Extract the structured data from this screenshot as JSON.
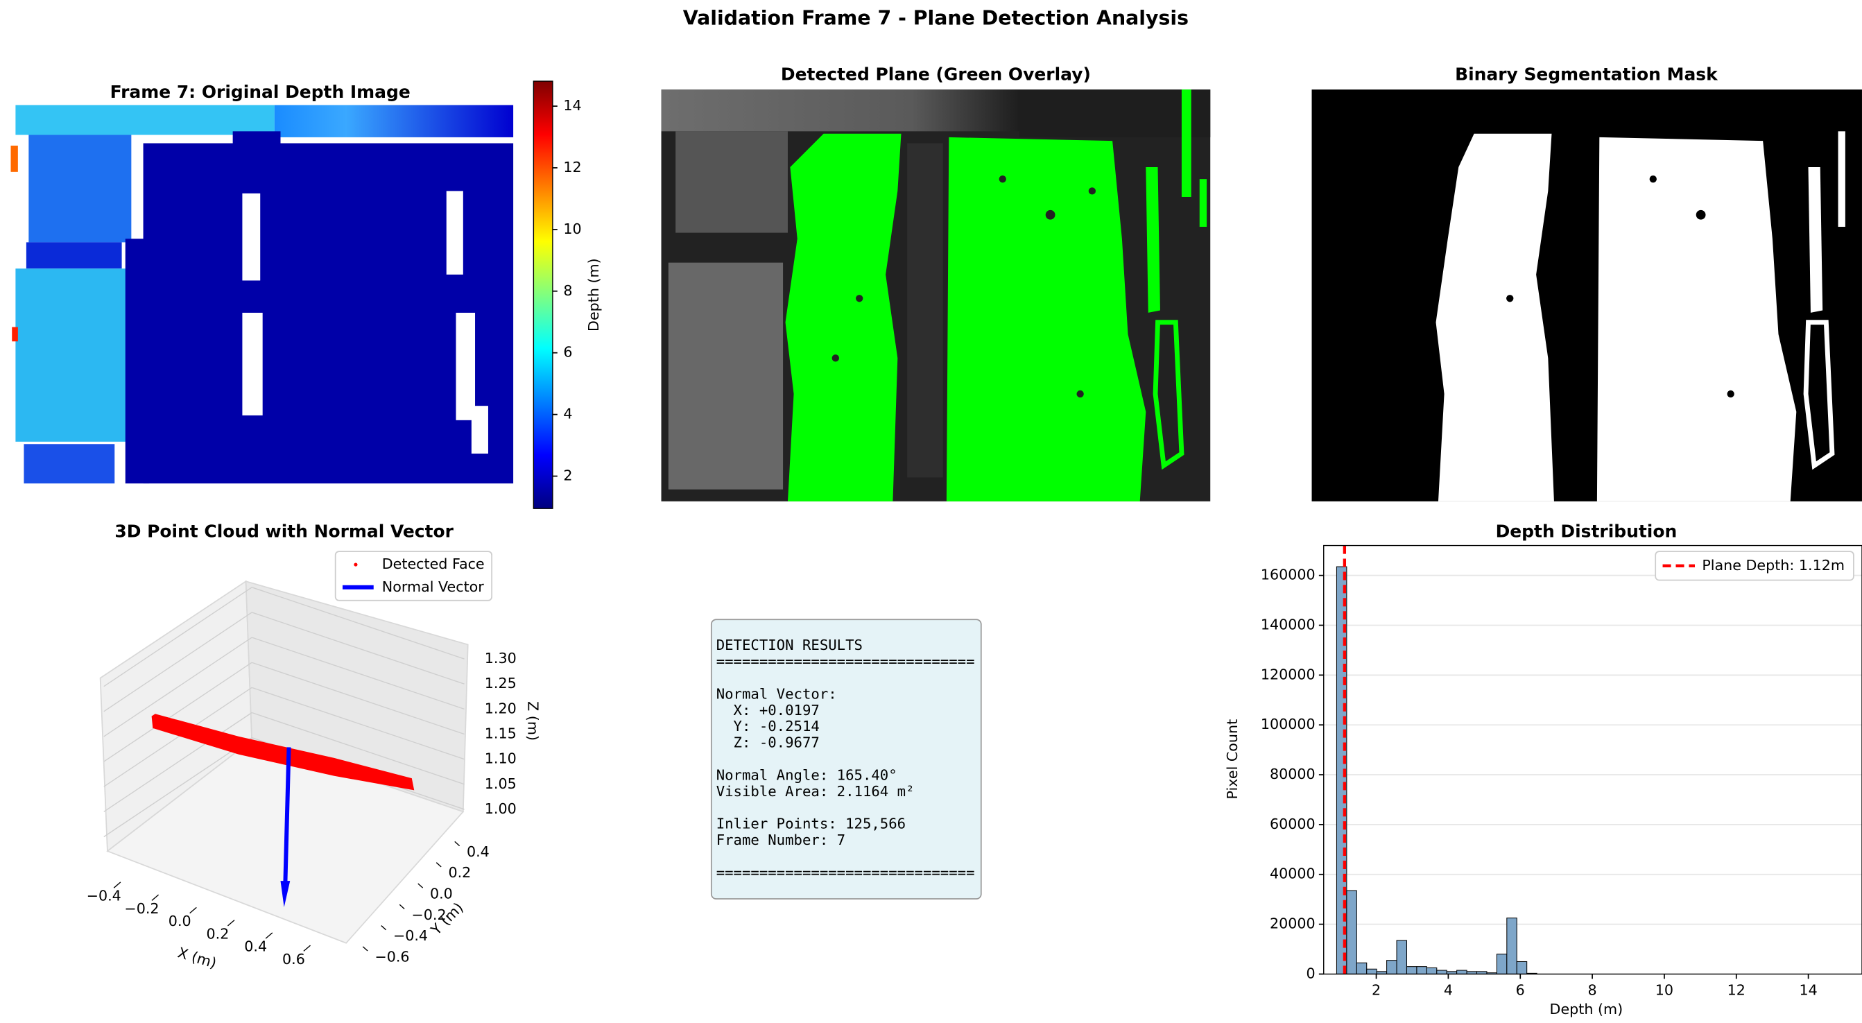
{
  "title": "Validation Frame 7 - Plane Detection Analysis",
  "chart_data": [
    {
      "type": "image",
      "title": "Frame 7: Original Depth Image",
      "colorbar": {
        "label": "Depth (m)",
        "lim": [
          0.95,
          14.81
        ],
        "ticks": [
          2,
          4,
          6,
          8,
          10,
          12,
          14
        ]
      }
    },
    {
      "type": "image",
      "title": "Detected Plane (Green Overlay)"
    },
    {
      "type": "image",
      "title": "Binary Segmentation Mask"
    },
    {
      "type": "scatter3d",
      "title": "3D Point Cloud with Normal Vector",
      "xlabel": "X (m)",
      "ylabel": "Y (m)",
      "zlabel": "Z (m)",
      "xlim": [
        -0.4,
        0.6
      ],
      "ylim": [
        -0.6,
        0.4
      ],
      "zlim": [
        1.0,
        1.3
      ],
      "xticks": [
        {
          "value": -0.4,
          "label": "−0.4"
        },
        {
          "value": -0.2,
          "label": "−0.2"
        },
        {
          "value": 0.0,
          "label": "0.0"
        },
        {
          "value": 0.2,
          "label": "0.2"
        },
        {
          "value": 0.4,
          "label": "0.4"
        },
        {
          "value": 0.6,
          "label": "0.6"
        }
      ],
      "yticks": [
        {
          "value": -0.6,
          "label": "−0.6"
        },
        {
          "value": -0.4,
          "label": "−0.4"
        },
        {
          "value": -0.2,
          "label": "−0.2"
        },
        {
          "value": 0.0,
          "label": "0.0"
        },
        {
          "value": 0.2,
          "label": "0.2"
        },
        {
          "value": 0.4,
          "label": "0.4"
        }
      ],
      "zticks": [
        {
          "value": 1.0,
          "label": "1.00"
        },
        {
          "value": 1.05,
          "label": "1.05"
        },
        {
          "value": 1.1,
          "label": "1.10"
        },
        {
          "value": 1.15,
          "label": "1.15"
        },
        {
          "value": 1.2,
          "label": "1.20"
        },
        {
          "value": 1.25,
          "label": "1.25"
        },
        {
          "value": 1.3,
          "label": "1.30"
        }
      ],
      "series": [
        {
          "name": "Detected Face",
          "color": "#ff0000"
        },
        {
          "name": "Normal Vector",
          "color": "#0000ff"
        }
      ]
    },
    {
      "type": "text",
      "blocks": [
        [
          "DETECTION RESULTS",
          "=============================="
        ],
        [
          "Normal Vector:",
          "  X: +0.0197",
          "  Y: -0.2514",
          "  Z: -0.9677"
        ],
        [
          "Normal Angle: 165.40°",
          "Visible Area: 2.1164 m²"
        ],
        [
          "Inlier Points: 125,566",
          "Frame Number: 7"
        ],
        [
          "=============================="
        ]
      ]
    },
    {
      "type": "histogram",
      "title": "Depth Distribution",
      "xlabel": "Depth (m)",
      "ylabel": "Pixel Count",
      "bins": [
        0.9,
        1.178,
        1.456,
        1.734,
        2.012,
        2.29,
        2.568,
        2.846,
        3.124,
        3.402,
        3.68,
        3.958,
        4.236,
        4.514,
        4.792,
        5.07,
        5.348,
        5.626,
        5.904,
        6.182,
        6.46,
        6.738,
        7.016,
        7.294,
        7.572,
        7.85,
        8.128,
        8.406,
        8.684,
        8.962,
        9.24,
        9.518,
        9.796,
        10.074,
        10.352,
        10.63,
        10.908,
        11.186,
        11.464,
        11.742,
        12.02,
        12.298,
        12.576,
        12.854,
        13.132,
        13.41,
        13.688,
        13.966,
        14.244,
        14.522,
        14.8
      ],
      "values": [
        163500,
        33500,
        4500,
        2000,
        1000,
        5500,
        13500,
        3000,
        3000,
        2500,
        1500,
        1000,
        1500,
        1000,
        1000,
        500,
        8000,
        22500,
        5000,
        300,
        0,
        0,
        0,
        0,
        0,
        0,
        0,
        0,
        0,
        0,
        0,
        0,
        0,
        0,
        0,
        0,
        0,
        0,
        0,
        0,
        0,
        0,
        0,
        0,
        0,
        0,
        0,
        0,
        0,
        0
      ],
      "color": "#7ea6c9",
      "xlim": [
        0.54,
        15.49
      ],
      "ylim": [
        0,
        172000
      ],
      "xticks": [
        2,
        4,
        6,
        8,
        10,
        12,
        14
      ],
      "yticks": [
        0,
        20000,
        40000,
        60000,
        80000,
        100000,
        120000,
        140000,
        160000
      ],
      "grid": "y",
      "reference_line": {
        "value": 1.12,
        "name": "Plane Depth: 1.12m",
        "color": "#ff0000"
      },
      "legend": "upper right"
    }
  ]
}
